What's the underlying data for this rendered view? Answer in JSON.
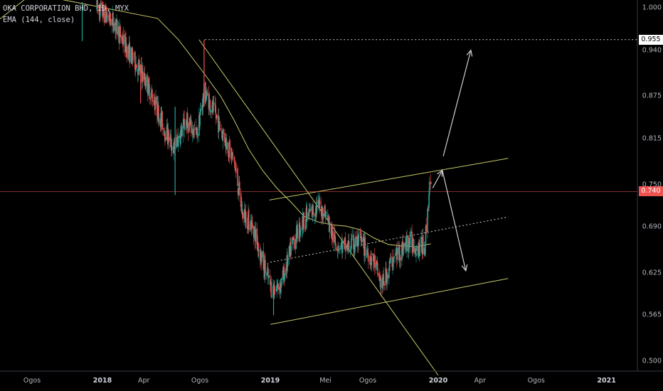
{
  "legend": {
    "symbol_line": "OKA CORPORATION BHD, 1D, MYX",
    "indicator_line": "EMA (144, close)"
  },
  "colors": {
    "background": "#000000",
    "up_candle": "#26a69a",
    "down_candle": "#ef5350",
    "ema_line": "#c9c96a",
    "trend_line": "#c8c86a",
    "arrow": "#d0d0d0",
    "last_price_line": "#ef5350"
  },
  "price_tags": {
    "high": "0.955",
    "last": "0.740"
  },
  "chart_data": {
    "type": "candlestick",
    "title": "OKA CORPORATION BHD, 1D, MYX",
    "y_ticks": [
      "1.000",
      "0.940",
      "0.875",
      "0.815",
      "0.750",
      "0.690",
      "0.625",
      "0.565",
      "0.500"
    ],
    "x_ticks": [
      {
        "label": "Ogos",
        "bold": false
      },
      {
        "label": "2018",
        "bold": true
      },
      {
        "label": "Apr",
        "bold": false
      },
      {
        "label": "Ogos",
        "bold": false
      },
      {
        "label": "2019",
        "bold": true
      },
      {
        "label": "Mei",
        "bold": false
      },
      {
        "label": "Ogos",
        "bold": false
      },
      {
        "label": "2020",
        "bold": true
      },
      {
        "label": "Apr",
        "bold": false
      },
      {
        "label": "Ogos",
        "bold": false
      },
      {
        "label": "2021",
        "bold": true
      }
    ],
    "ylim": [
      0.48,
      1.01
    ],
    "price_range_path": [
      [
        "2017-12-20",
        1.0
      ],
      [
        "2018-01-25",
        0.98
      ],
      [
        "2018-02-25",
        0.94
      ],
      [
        "2018-03-25",
        0.91
      ],
      [
        "2018-04-20",
        0.875
      ],
      [
        "2018-05-15",
        0.83
      ],
      [
        "2018-06-05",
        0.8
      ],
      [
        "2018-07-01",
        0.84
      ],
      [
        "2018-07-25",
        0.82
      ],
      [
        "2018-08-10",
        0.88
      ],
      [
        "2018-08-20",
        0.87
      ],
      [
        "2018-09-15",
        0.83
      ],
      [
        "2018-10-15",
        0.78
      ],
      [
        "2018-11-01",
        0.71
      ],
      [
        "2018-11-25",
        0.69
      ],
      [
        "2018-12-15",
        0.64
      ],
      [
        "2019-01-05",
        0.6
      ],
      [
        "2019-01-25",
        0.61
      ],
      [
        "2019-02-20",
        0.67
      ],
      [
        "2019-03-15",
        0.7
      ],
      [
        "2019-04-15",
        0.72
      ],
      [
        "2019-05-01",
        0.71
      ],
      [
        "2019-05-20",
        0.67
      ],
      [
        "2019-06-15",
        0.66
      ],
      [
        "2019-07-15",
        0.67
      ],
      [
        "2019-08-15",
        0.64
      ],
      [
        "2019-09-01",
        0.605
      ],
      [
        "2019-09-20",
        0.64
      ],
      [
        "2019-10-15",
        0.66
      ],
      [
        "2019-11-01",
        0.67
      ],
      [
        "2019-11-20",
        0.66
      ],
      [
        "2019-12-03",
        0.665
      ],
      [
        "2019-12-10",
        0.72
      ],
      [
        "2019-12-13",
        0.745
      ],
      [
        "2019-12-16",
        0.74
      ]
    ],
    "wicks": [
      {
        "date": "2017-11-18",
        "low": 0.953,
        "high": 1.008
      },
      {
        "date": "2018-03-25",
        "low": 0.865,
        "high": 0.92
      },
      {
        "date": "2018-06-08",
        "low": 0.735,
        "high": 0.86
      },
      {
        "date": "2018-08-10",
        "low": 0.86,
        "high": 0.955
      },
      {
        "date": "2019-01-08",
        "low": 0.565,
        "high": 0.61
      }
    ],
    "ema_144_path": [
      [
        "2017-03-01",
        0.91
      ],
      [
        "2017-05-15",
        0.98
      ],
      [
        "2017-08-01",
        1.02
      ],
      [
        "2018-05-01",
        0.985
      ],
      [
        "2018-06-15",
        0.955
      ],
      [
        "2018-08-01",
        0.915
      ],
      [
        "2018-09-15",
        0.875
      ],
      [
        "2018-10-15",
        0.84
      ],
      [
        "2018-11-15",
        0.8
      ],
      [
        "2018-12-15",
        0.77
      ],
      [
        "2019-01-15",
        0.745
      ],
      [
        "2019-02-15",
        0.725
      ],
      [
        "2019-03-15",
        0.705
      ],
      [
        "2019-04-15",
        0.697
      ],
      [
        "2019-05-15",
        0.693
      ],
      [
        "2019-06-15",
        0.691
      ],
      [
        "2019-07-15",
        0.686
      ],
      [
        "2019-08-15",
        0.674
      ],
      [
        "2019-09-15",
        0.665
      ],
      [
        "2019-10-15",
        0.663
      ],
      [
        "2019-11-15",
        0.662
      ],
      [
        "2019-12-16",
        0.666
      ]
    ],
    "last_price": 0.74,
    "high_marker": 0.955,
    "drawings": {
      "downtrend_line": [
        [
          "2018-07-30",
          0.955
        ],
        [
          "2020-01-01",
          0.48
        ]
      ],
      "channel_upper": [
        [
          "2018-12-30",
          0.728
        ],
        [
          "2020-06-01",
          0.787
        ]
      ],
      "channel_lower": [
        [
          "2019-01-01",
          0.552
        ],
        [
          "2020-06-01",
          0.617
        ]
      ],
      "channel_mid_dotted": [
        [
          "2019-01-01",
          0.64
        ],
        [
          "2020-06-01",
          0.704
        ]
      ],
      "high_dotted": [
        [
          "2018-08-12",
          0.955
        ],
        [
          "2021-06-30",
          0.955
        ]
      ],
      "arrow_up": [
        [
          "2020-01-12",
          0.79
        ],
        [
          "2020-03-12",
          0.94
        ]
      ],
      "arrow_down_path": [
        [
          "2019-12-20",
          0.745
        ],
        [
          "2020-01-10",
          0.77
        ],
        [
          "2020-03-01",
          0.628
        ]
      ]
    }
  }
}
